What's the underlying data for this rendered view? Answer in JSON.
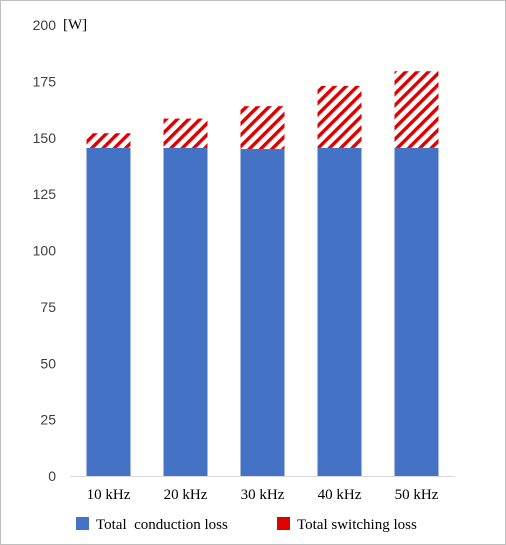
{
  "chart_data": {
    "type": "bar",
    "stacked": true,
    "categories": [
      "10 kHz",
      "20 kHz",
      "30 kHz",
      "40 kHz",
      "50 kHz"
    ],
    "series": [
      {
        "name": "Total  conduction loss",
        "color": "#4472c4",
        "pattern": "solid",
        "values": [
          145.5,
          145.5,
          145,
          145.5,
          145.5
        ]
      },
      {
        "name": "Total switching loss",
        "color": "#e00000",
        "pattern": "diagonal-hatch",
        "values": [
          6.5,
          13,
          19,
          27.5,
          34
        ]
      }
    ],
    "y_unit_label": "[W]",
    "ylim": [
      0,
      200
    ],
    "yticks": [
      0,
      25,
      50,
      75,
      100,
      125,
      150,
      175,
      200
    ],
    "grid": false,
    "legend_position": "bottom"
  }
}
